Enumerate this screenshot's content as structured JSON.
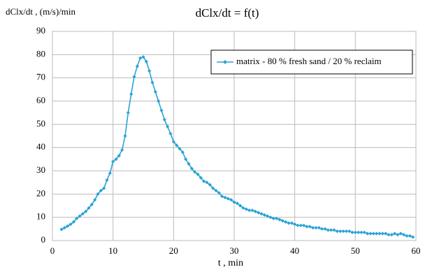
{
  "chart_data": {
    "type": "line",
    "title": "dClx/dt = f(t)",
    "ylabel": "dClx/dt , (m/s)/min",
    "xlabel": "t , min",
    "x": [
      1.5,
      2,
      2.5,
      3,
      3.5,
      4,
      4.5,
      5,
      5.5,
      6,
      6.5,
      7,
      7.5,
      8,
      8.5,
      9,
      9.5,
      10,
      10.5,
      11,
      11.5,
      12,
      12.5,
      13,
      13.5,
      14,
      14.5,
      15,
      15.5,
      16,
      16.5,
      17,
      17.5,
      18,
      18.5,
      19,
      19.5,
      20,
      20.5,
      21,
      21.5,
      22,
      22.5,
      23,
      23.5,
      24,
      24.5,
      25,
      25.5,
      26,
      26.5,
      27,
      27.5,
      28,
      28.5,
      29,
      29.5,
      30,
      30.5,
      31,
      31.5,
      32,
      32.5,
      33,
      33.5,
      34,
      34.5,
      35,
      35.5,
      36,
      36.5,
      37,
      37.5,
      38,
      38.5,
      39,
      39.5,
      40,
      40.5,
      41,
      41.5,
      42,
      42.5,
      43,
      43.5,
      44,
      44.5,
      45,
      45.5,
      46,
      46.5,
      47,
      47.5,
      48,
      48.5,
      49,
      49.5,
      50,
      50.5,
      51,
      51.5,
      52,
      52.5,
      53,
      53.5,
      54,
      54.5,
      55,
      55.5,
      56,
      56.5,
      57,
      57.5,
      58,
      58.5,
      59,
      59.5
    ],
    "series": [
      {
        "name": "matrix - 80 % fresh sand / 20 % reclaim",
        "color": "#29a3d6",
        "values": [
          4.8,
          5.5,
          6.2,
          7,
          8,
          9.5,
          10.5,
          11.5,
          12.5,
          14,
          15.5,
          17.5,
          20,
          21.5,
          22.5,
          26,
          29,
          34,
          35,
          36.5,
          39,
          45,
          55,
          63,
          70.5,
          75,
          78.5,
          79,
          77,
          73,
          68,
          64,
          60,
          56,
          52,
          49,
          46,
          42.5,
          41,
          39.5,
          38,
          35,
          33,
          31,
          29.5,
          28.5,
          27,
          25.5,
          25,
          24,
          22.5,
          21.5,
          20.5,
          19,
          18.5,
          18,
          17.5,
          16.5,
          16,
          15,
          14,
          13.5,
          13,
          13,
          12.5,
          12,
          11.5,
          11,
          10.5,
          10,
          9.5,
          9.5,
          9,
          8.5,
          8,
          7.5,
          7.5,
          7,
          6.5,
          6.5,
          6.5,
          6,
          6,
          5.5,
          5.5,
          5.5,
          5,
          5,
          4.5,
          4.5,
          4.5,
          4,
          4,
          4,
          4,
          4,
          3.5,
          3.5,
          3.5,
          3.5,
          3.5,
          3,
          3,
          3,
          3,
          3,
          3,
          3,
          2.5,
          2.5,
          3,
          2.5,
          3,
          2.5,
          2,
          2,
          1.5
        ]
      }
    ],
    "xlim": [
      0,
      60
    ],
    "xticks": [
      0,
      10,
      20,
      30,
      40,
      50,
      60
    ],
    "ylim": [
      0,
      90
    ],
    "yticks": [
      0,
      10,
      20,
      30,
      40,
      50,
      60,
      70,
      80,
      90
    ],
    "grid": true,
    "legend": "upper right"
  }
}
